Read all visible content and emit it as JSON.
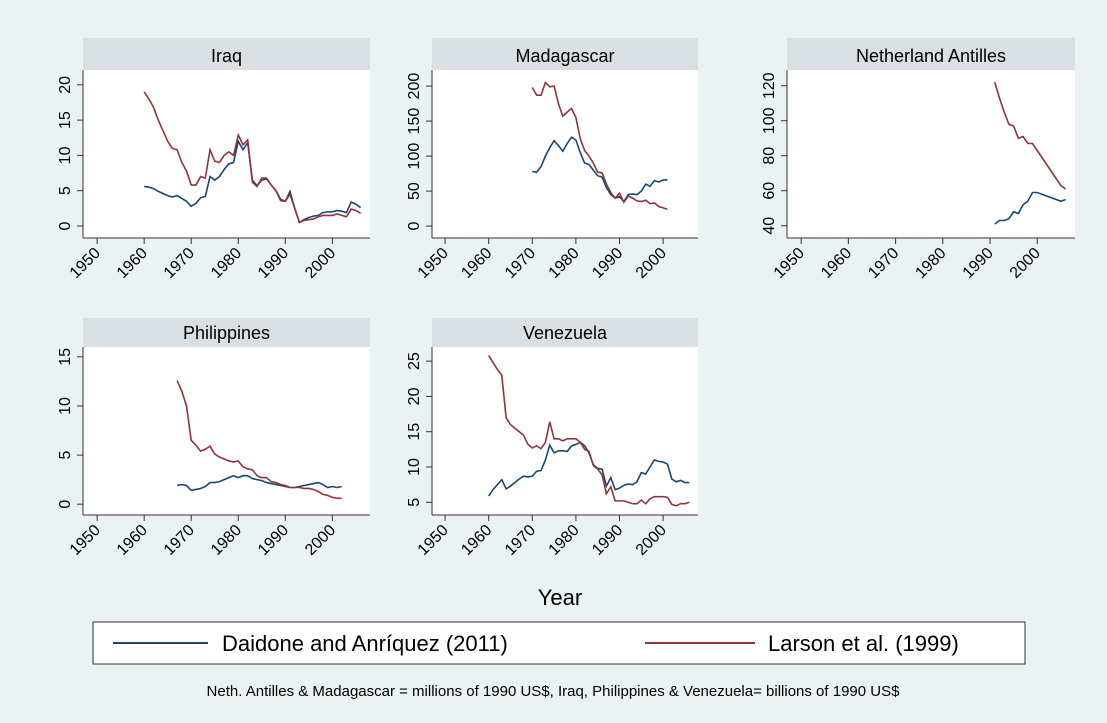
{
  "chart_data": [
    {
      "type": "line",
      "title": "Iraq",
      "xlim": [
        1947,
        2008
      ],
      "xticks": [
        1950,
        1960,
        1970,
        1980,
        1990,
        2000
      ],
      "ylim": [
        -1.7,
        22.1
      ],
      "yticks": [
        0,
        5,
        10,
        15,
        20
      ],
      "x": [
        1960,
        1961,
        1962,
        1963,
        1964,
        1965,
        1966,
        1967,
        1968,
        1969,
        1970,
        1971,
        1972,
        1973,
        1974,
        1975,
        1976,
        1977,
        1978,
        1979,
        1980,
        1981,
        1982,
        1983,
        1984,
        1985,
        1986,
        1987,
        1988,
        1989,
        1990,
        1991,
        1992,
        1993,
        1994,
        1995,
        1996,
        1997,
        1998,
        1999,
        2000,
        2001,
        2002,
        2003,
        2004,
        2005,
        2006
      ],
      "series": [
        {
          "name": "Daidone and Anríquez (2011)",
          "color": "#1a476f",
          "values": [
            5.6,
            5.5,
            5.3,
            4.9,
            4.6,
            4.3,
            4.1,
            4.3,
            3.9,
            3.5,
            2.8,
            3.2,
            4.0,
            4.2,
            7.0,
            6.5,
            7.0,
            8.0,
            8.8,
            9.0,
            12.0,
            10.8,
            11.8,
            6.5,
            5.7,
            6.5,
            6.7,
            5.8,
            5.0,
            3.8,
            3.5,
            4.9,
            2.5,
            0.5,
            0.9,
            1.2,
            1.4,
            1.5,
            1.9,
            2.0,
            2.0,
            2.2,
            2.1,
            1.9,
            3.4,
            3.1,
            2.6
          ]
        },
        {
          "name": "Larson et al. (1999)",
          "color": "#90353b",
          "values": [
            19,
            18,
            16.8,
            15,
            13.5,
            12,
            11,
            10.8,
            9,
            7.8,
            5.8,
            5.8,
            7,
            6.8,
            10.8,
            9.2,
            9,
            10,
            10.5,
            10,
            12.9,
            11.5,
            12.2,
            6.2,
            5.6,
            6.8,
            6.8,
            5.8,
            5,
            3.6,
            3.5,
            4.5,
            2.5,
            0.5,
            0.8,
            0.9,
            1,
            1.3,
            1.5,
            1.5,
            1.5,
            1.7,
            1.5,
            1.3,
            2.4,
            2.2,
            1.8
          ]
        }
      ]
    },
    {
      "type": "line",
      "title": "Madagascar",
      "xlim": [
        1947,
        2008
      ],
      "xticks": [
        1950,
        1960,
        1970,
        1980,
        1990,
        2000
      ],
      "ylim": [
        -17,
        223
      ],
      "yticks": [
        0,
        50,
        100,
        150,
        200
      ],
      "x": [
        1970,
        1971,
        1972,
        1973,
        1974,
        1975,
        1976,
        1977,
        1978,
        1979,
        1980,
        1981,
        1982,
        1983,
        1984,
        1985,
        1986,
        1987,
        1988,
        1989,
        1990,
        1991,
        1992,
        1993,
        1994,
        1995,
        1996,
        1997,
        1998,
        1999,
        2000,
        2001
      ],
      "series": [
        {
          "name": "Daidone and Anríquez (2011)",
          "color": "#1a476f",
          "values": [
            78,
            77,
            85,
            100,
            112,
            122,
            115,
            107,
            118,
            127,
            123,
            105,
            90,
            88,
            80,
            72,
            70,
            55,
            45,
            40,
            42,
            35,
            45,
            46,
            45,
            50,
            60,
            57,
            65,
            63,
            66,
            66
          ]
        },
        {
          "name": "Larson et al. (1999)",
          "color": "#90353b",
          "values": [
            198,
            187,
            187,
            205,
            199,
            200,
            175,
            157,
            163,
            168,
            155,
            125,
            108,
            100,
            90,
            77,
            76,
            60,
            48,
            40,
            47,
            34,
            43,
            40,
            36,
            35,
            37,
            32,
            33,
            28,
            26,
            24
          ]
        }
      ]
    },
    {
      "type": "line",
      "title": "Netherland Antilles",
      "xlim": [
        1947,
        2008
      ],
      "xticks": [
        1950,
        1960,
        1970,
        1980,
        1990,
        2000
      ],
      "ylim": [
        33,
        129
      ],
      "yticks": [
        40,
        60,
        80,
        100,
        120
      ],
      "x": [
        1991,
        1992,
        1993,
        1994,
        1995,
        1996,
        1997,
        1998,
        1999,
        2000,
        2001,
        2002,
        2003,
        2004,
        2005,
        2006
      ],
      "series": [
        {
          "name": "Daidone and Anríquez (2011)",
          "color": "#1a476f",
          "values": [
            41,
            43,
            43,
            44,
            48,
            47,
            52,
            54,
            59,
            59,
            58,
            57,
            56,
            55,
            54,
            55
          ]
        },
        {
          "name": "Larson et al. (1999)",
          "color": "#90353b",
          "values": [
            122,
            113,
            105,
            98,
            97,
            90,
            91,
            87,
            87,
            83,
            79,
            75,
            71,
            67,
            63,
            61
          ]
        }
      ]
    },
    {
      "type": "line",
      "title": "Philippines",
      "xlim": [
        1947,
        2008
      ],
      "xticks": [
        1950,
        1960,
        1970,
        1980,
        1990,
        2000
      ],
      "ylim": [
        -1.1,
        16
      ],
      "yticks": [
        0,
        5,
        10,
        15
      ],
      "x": [
        1967,
        1968,
        1969,
        1970,
        1971,
        1972,
        1973,
        1974,
        1975,
        1976,
        1977,
        1978,
        1979,
        1980,
        1981,
        1982,
        1983,
        1984,
        1985,
        1986,
        1987,
        1988,
        1989,
        1990,
        1991,
        1992,
        1993,
        1994,
        1995,
        1996,
        1997,
        1998,
        1999,
        2000,
        2001,
        2002
      ],
      "series": [
        {
          "name": "Daidone and Anríquez (2011)",
          "color": "#1a476f",
          "values": [
            1.9,
            2.0,
            1.9,
            1.4,
            1.5,
            1.6,
            1.8,
            2.2,
            2.2,
            2.3,
            2.5,
            2.7,
            2.9,
            2.7,
            2.9,
            2.9,
            2.6,
            2.5,
            2.4,
            2.2,
            2.1,
            2.0,
            1.9,
            1.8,
            1.7,
            1.7,
            1.8,
            1.9,
            2.0,
            2.1,
            2.2,
            2.0,
            1.7,
            1.8,
            1.7,
            1.8
          ]
        },
        {
          "name": "Larson et al. (1999)",
          "color": "#90353b",
          "values": [
            12.6,
            11.5,
            10,
            6.5,
            6,
            5.4,
            5.6,
            5.9,
            5.1,
            4.8,
            4.6,
            4.4,
            4.3,
            4.4,
            3.8,
            3.6,
            3.5,
            2.9,
            2.7,
            2.7,
            2.3,
            2.2,
            2.0,
            1.9,
            1.7,
            1.7,
            1.7,
            1.6,
            1.6,
            1.5,
            1.3,
            1.0,
            0.9,
            0.7,
            0.6,
            0.6
          ]
        }
      ]
    },
    {
      "type": "line",
      "title": "Venezuela",
      "xlim": [
        1947,
        2008
      ],
      "xticks": [
        1950,
        1960,
        1970,
        1980,
        1990,
        2000
      ],
      "ylim": [
        3.2,
        27
      ],
      "yticks": [
        5,
        10,
        15,
        20,
        25
      ],
      "x": [
        1960,
        1961,
        1962,
        1963,
        1964,
        1965,
        1966,
        1967,
        1968,
        1969,
        1970,
        1971,
        1972,
        1973,
        1974,
        1975,
        1976,
        1977,
        1978,
        1979,
        1980,
        1981,
        1982,
        1983,
        1984,
        1985,
        1986,
        1987,
        1988,
        1989,
        1990,
        1991,
        1992,
        1993,
        1994,
        1995,
        1996,
        1997,
        1998,
        1999,
        2000,
        2001,
        2002,
        2003,
        2004,
        2005,
        2006
      ],
      "series": [
        {
          "name": "Daidone and Anríquez (2011)",
          "color": "#1a476f",
          "values": [
            5.9,
            6.8,
            7.5,
            8.2,
            6.9,
            7.3,
            7.8,
            8.3,
            8.7,
            8.6,
            8.7,
            9.4,
            9.5,
            11,
            13.1,
            12,
            12.3,
            12.3,
            12.2,
            13,
            13.2,
            13.5,
            13,
            12,
            10.3,
            9.8,
            9.7,
            7.3,
            8.5,
            6.8,
            7,
            7.4,
            7.6,
            7.5,
            7.9,
            9.2,
            9,
            10,
            11,
            10.8,
            10.7,
            10.4,
            8.3,
            7.9,
            8.1,
            7.8,
            7.8
          ]
        },
        {
          "name": "Larson et al. (1999)",
          "color": "#90353b",
          "values": [
            25.8,
            24.8,
            23.8,
            23,
            17,
            16,
            15.5,
            15,
            14.5,
            13.2,
            12.7,
            13.0,
            12.6,
            13.5,
            16.4,
            14,
            14,
            13.7,
            14,
            14,
            14,
            13.5,
            12.5,
            12.2,
            10.2,
            9.7,
            8.9,
            6.2,
            7.2,
            5.2,
            5.2,
            5.2,
            5.0,
            4.8,
            4.8,
            5.3,
            4.8,
            5.5,
            5.8,
            5.8,
            5.8,
            5.7,
            4.7,
            4.5,
            4.8,
            4.8,
            5.0
          ]
        }
      ]
    }
  ],
  "xlabel": "Year",
  "note": "Neth. Antilles & Madagascar = millions of 1990 US$, Iraq, Philippines & Venezuela= billions of 1990 US$"
}
